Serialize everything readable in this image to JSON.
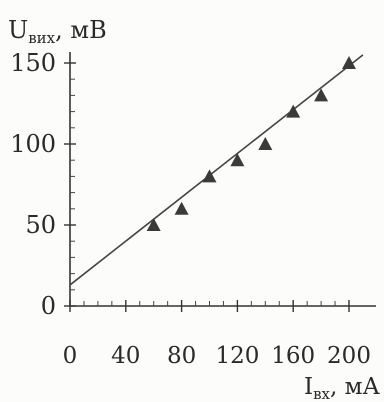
{
  "chart_data": {
    "type": "scatter",
    "ylabel_main": "U",
    "ylabel_sub": "вих",
    "ylabel_unit": ", мВ",
    "xlabel_main": "I",
    "xlabel_sub": "вх",
    "xlabel_unit": ", мА",
    "xlim": [
      0,
      210
    ],
    "ylim": [
      0,
      150
    ],
    "x_ticks": [
      0,
      40,
      80,
      120,
      160,
      200
    ],
    "x_tick_labels": [
      "0",
      "40",
      "80",
      "120",
      "160",
      "200"
    ],
    "y_ticks": [
      0,
      50,
      100,
      150
    ],
    "y_tick_labels": [
      "0",
      "50",
      "100",
      "150"
    ],
    "grid": false,
    "series": [
      {
        "marker": "triangle",
        "color": "#3a3a3a",
        "x": [
          60,
          80,
          100,
          120,
          140,
          160,
          180,
          200
        ],
        "y": [
          50,
          60,
          80,
          90,
          100,
          120,
          130,
          150
        ]
      }
    ],
    "fit_line": {
      "x": [
        0,
        210
      ],
      "y": [
        13,
        155
      ],
      "color": "#444444"
    }
  }
}
